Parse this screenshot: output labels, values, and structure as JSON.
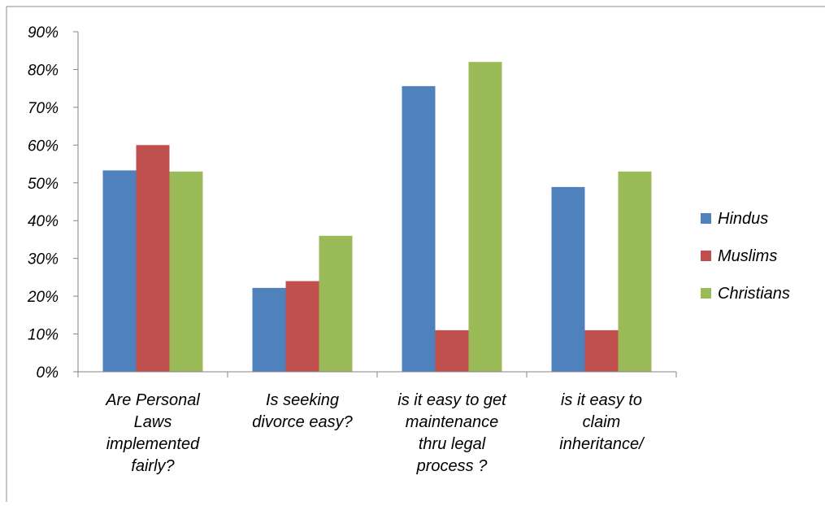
{
  "chart_data": {
    "type": "bar",
    "title": "",
    "xlabel": "",
    "ylabel": "",
    "ylim": [
      0,
      0.9
    ],
    "yticks": [
      "0%",
      "10%",
      "20%",
      "30%",
      "40%",
      "50%",
      "60%",
      "70%",
      "80%",
      "90%"
    ],
    "grid": false,
    "legend_position": "right",
    "categories": [
      [
        "Are Personal",
        "Laws",
        "implemented",
        "fairly?"
      ],
      [
        "Is seeking",
        "divorce easy?"
      ],
      [
        "is it easy to get",
        "maintenance",
        "thru legal",
        "process ?"
      ],
      [
        "is it easy to",
        "claim",
        "inheritance/"
      ]
    ],
    "series": [
      {
        "name": "Hindus",
        "color": "#4F81BD",
        "values": [
          0.533,
          0.222,
          0.756,
          0.489
        ]
      },
      {
        "name": "Muslims",
        "color": "#C0504D",
        "values": [
          0.6,
          0.24,
          0.11,
          0.11
        ]
      },
      {
        "name": "Christians",
        "color": "#9BBB59",
        "values": [
          0.53,
          0.36,
          0.82,
          0.53
        ]
      }
    ]
  }
}
